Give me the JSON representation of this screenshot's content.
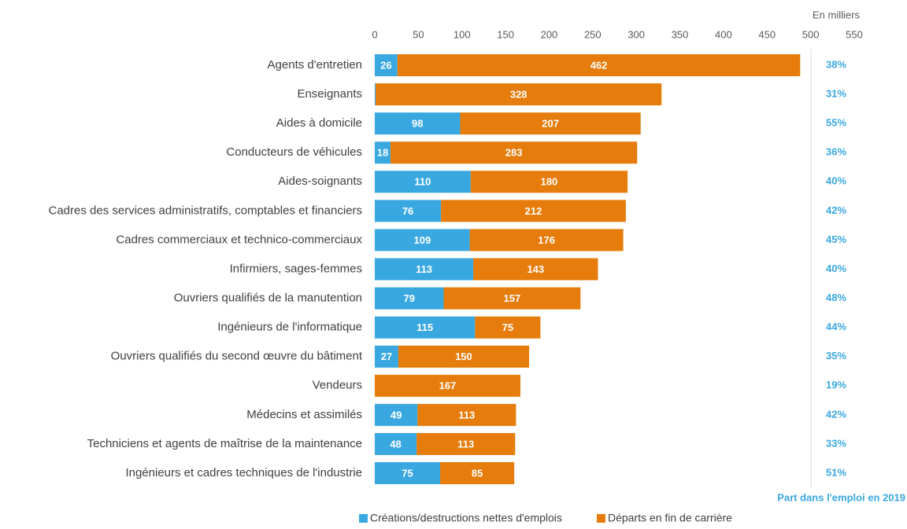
{
  "chart_data": {
    "type": "stacked-bar-horizontal",
    "unit_label": "En milliers",
    "categories": [
      "Agents d'entretien",
      "Enseignants",
      "Aides à domicile",
      "Conducteurs de véhicules",
      "Aides-soignants",
      "Cadres des services administratifs, comptables et financiers",
      "Cadres commerciaux et technico-commerciaux",
      "Infirmiers, sages-femmes",
      "Ouvriers qualifiés de la manutention",
      "Ingénieurs de l'informatique",
      "Ouvriers qualifiés du second œuvre du bâtiment",
      "Vendeurs",
      "Médecins et assimilés",
      "Techniciens et agents de maîtrise de la maintenance",
      "Ingénieurs et cadres techniques de l'industrie"
    ],
    "series": [
      {
        "name": "Créations/destructions nettes d'emplois",
        "color": "#3aa8e0",
        "values": [
          26,
          1,
          98,
          18,
          110,
          76,
          109,
          113,
          79,
          115,
          27,
          null,
          49,
          48,
          75
        ]
      },
      {
        "name": "Départs en fin de carrière",
        "color": "#e57c0b",
        "values": [
          462,
          328,
          207,
          283,
          180,
          212,
          176,
          143,
          157,
          75,
          150,
          167,
          113,
          113,
          85
        ]
      }
    ],
    "shares": {
      "label": "Part dans l'emploi en 2019",
      "color": "#3aa8e0",
      "values": [
        38,
        31,
        55,
        36,
        40,
        42,
        45,
        40,
        48,
        44,
        35,
        19,
        42,
        33,
        51
      ],
      "value_labels": [
        "38%",
        "31%",
        "55%",
        "36%",
        "40%",
        "42%",
        "45%",
        "40%",
        "48%",
        "44%",
        "35%",
        "19%",
        "42%",
        "33%",
        "51%"
      ]
    },
    "xlim": [
      0,
      550
    ],
    "xticks": [
      0,
      50,
      100,
      150,
      200,
      250,
      300,
      350,
      400,
      450,
      500,
      550
    ]
  }
}
